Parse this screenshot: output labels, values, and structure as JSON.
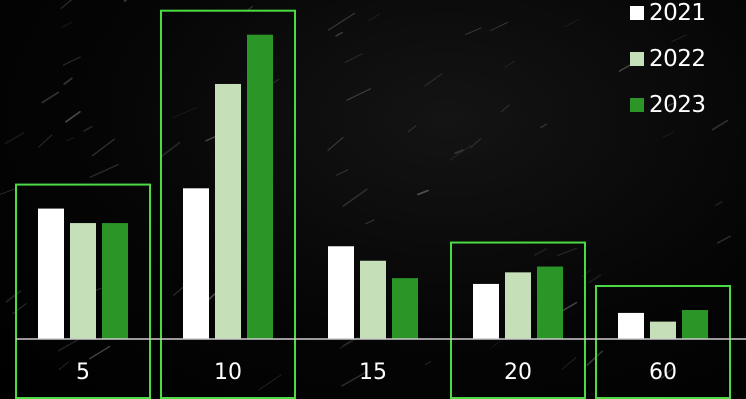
{
  "chart_data": {
    "type": "bar",
    "title": "",
    "xlabel": "",
    "ylabel": "",
    "categories": [
      "5",
      "10",
      "15",
      "20",
      "60"
    ],
    "highlighted_categories": [
      "5",
      "10",
      "20",
      "60"
    ],
    "series": [
      {
        "name": "2021",
        "color": "#ffffff",
        "values": [
          45,
          52,
          32,
          19,
          9
        ]
      },
      {
        "name": "2022",
        "color": "#c5e0b8",
        "values": [
          40,
          88,
          27,
          23,
          6
        ]
      },
      {
        "name": "2023",
        "color": "#2b9528",
        "values": [
          40,
          105,
          21,
          25,
          10
        ]
      }
    ],
    "ylim": [
      0,
      108
    ],
    "grid": false,
    "legend_position": "top-right",
    "highlight_color": "#4cdb43"
  }
}
